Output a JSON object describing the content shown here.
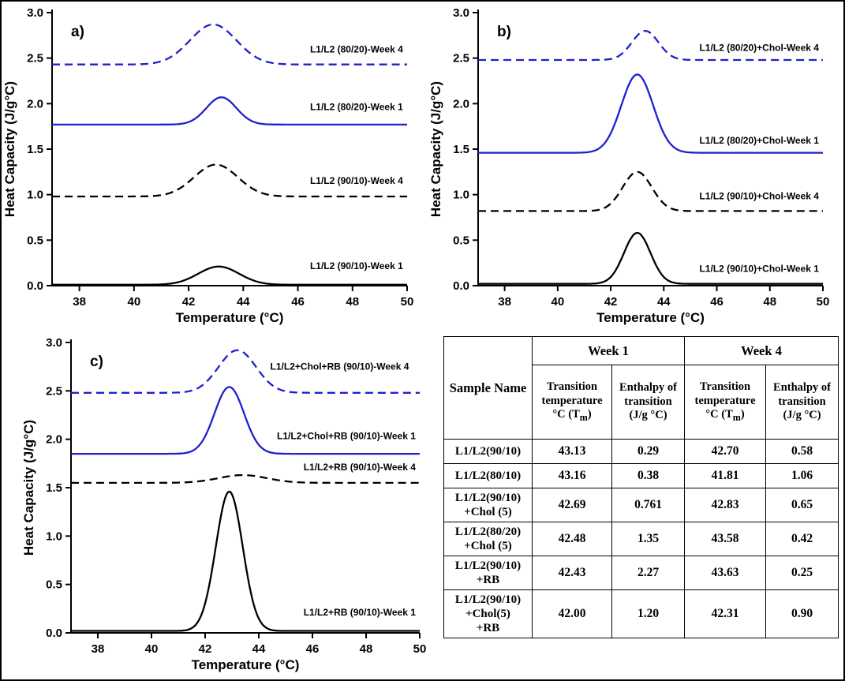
{
  "figure": {
    "background": "#ffffff",
    "border_color": "#000000",
    "accent_blue": "#2020CC",
    "line_black": "#000000"
  },
  "chart_data": [
    {
      "id": "a",
      "type": "line",
      "panel_label": "a)",
      "xlabel": "Temperature (°C)",
      "ylabel": "Heat Capacity (J/g°C)",
      "xlim": [
        37,
        50
      ],
      "ylim": [
        0,
        3
      ],
      "xticks": [
        38,
        40,
        42,
        44,
        46,
        48,
        50
      ],
      "yticks": [
        0,
        0.5,
        1,
        1.5,
        2,
        2.5,
        3
      ],
      "grid": false,
      "series": [
        {
          "name": "L1/L2 (80/20)-Week 4",
          "color": "#2020CC",
          "line_style": "dashed",
          "baseline": 2.43,
          "peak_center": 42.9,
          "peak_height": 0.44,
          "peak_sigma": 0.85,
          "label_x": 49.85,
          "label_y": 2.56
        },
        {
          "name": "L1/L2 (80/20)-Week 1",
          "color": "#2020CC",
          "line_style": "solid",
          "baseline": 1.77,
          "peak_center": 43.2,
          "peak_height": 0.3,
          "peak_sigma": 0.55,
          "label_x": 49.85,
          "label_y": 1.93
        },
        {
          "name": "L1/L2 (90/10)-Week 4",
          "color": "#000000",
          "line_style": "dashed",
          "baseline": 0.98,
          "peak_center": 43.0,
          "peak_height": 0.35,
          "peak_sigma": 0.8,
          "label_x": 49.85,
          "label_y": 1.12
        },
        {
          "name": "L1/L2 (90/10)-Week 1",
          "color": "#000000",
          "line_style": "solid",
          "baseline": 0.01,
          "peak_center": 43.1,
          "peak_height": 0.2,
          "peak_sigma": 0.75,
          "label_x": 49.85,
          "label_y": 0.18
        }
      ]
    },
    {
      "id": "b",
      "type": "line",
      "panel_label": "b)",
      "xlabel": "Temperature (°C)",
      "ylabel": "Heat Capacity (J/g°C)",
      "xlim": [
        37,
        50
      ],
      "ylim": [
        0,
        3
      ],
      "xticks": [
        38,
        40,
        42,
        44,
        46,
        48,
        50
      ],
      "yticks": [
        0,
        0.5,
        1,
        1.5,
        2,
        2.5,
        3
      ],
      "grid": false,
      "series": [
        {
          "name": "L1/L2 (80/20)+Chol-Week 4",
          "color": "#2020CC",
          "line_style": "dashed",
          "baseline": 2.48,
          "peak_center": 43.3,
          "peak_height": 0.32,
          "peak_sigma": 0.5,
          "label_x": 49.85,
          "label_y": 2.58
        },
        {
          "name": "L1/L2 (80/20)+Chol-Week 1",
          "color": "#2020CC",
          "line_style": "solid",
          "baseline": 1.46,
          "peak_center": 43.0,
          "peak_height": 0.86,
          "peak_sigma": 0.6,
          "label_x": 49.85,
          "label_y": 1.56
        },
        {
          "name": "L1/L2 (90/10)+Chol-Week 4",
          "color": "#000000",
          "line_style": "dashed",
          "baseline": 0.82,
          "peak_center": 43.0,
          "peak_height": 0.43,
          "peak_sigma": 0.55,
          "label_x": 49.85,
          "label_y": 0.95
        },
        {
          "name": "L1/L2 (90/10)+Chol-Week 1",
          "color": "#000000",
          "line_style": "solid",
          "baseline": 0.02,
          "peak_center": 43.0,
          "peak_height": 0.56,
          "peak_sigma": 0.5,
          "label_x": 49.85,
          "label_y": 0.15
        }
      ]
    },
    {
      "id": "c",
      "type": "line",
      "panel_label": "c)",
      "xlabel": "Temperature (°C)",
      "ylabel": "Heat Capacity (J/g°C)",
      "xlim": [
        37,
        50
      ],
      "ylim": [
        0,
        3
      ],
      "xticks": [
        38,
        40,
        42,
        44,
        46,
        48,
        50
      ],
      "yticks": [
        0,
        0.5,
        1,
        1.5,
        2,
        2.5,
        3
      ],
      "grid": false,
      "series": [
        {
          "name": "L1/L2+Chol+RB (90/10)-Week 4",
          "color": "#2020CC",
          "line_style": "dashed",
          "baseline": 2.48,
          "peak_center": 43.2,
          "peak_height": 0.44,
          "peak_sigma": 0.7,
          "label_x": 49.6,
          "label_y": 2.72
        },
        {
          "name": "L1/L2+Chol+RB (90/10)-Week 1",
          "color": "#2020CC",
          "line_style": "solid",
          "baseline": 1.85,
          "peak_center": 42.9,
          "peak_height": 0.69,
          "peak_sigma": 0.55,
          "label_x": 49.85,
          "label_y": 2.0
        },
        {
          "name": "L1/L2+RB (90/10)-Week 4",
          "color": "#000000",
          "line_style": "dashed",
          "baseline": 1.55,
          "peak_center": 43.4,
          "peak_height": 0.08,
          "peak_sigma": 0.9,
          "label_x": 49.85,
          "label_y": 1.68
        },
        {
          "name": "L1/L2+RB (90/10)-Week 1",
          "color": "#000000",
          "line_style": "solid",
          "baseline": 0.02,
          "peak_center": 42.9,
          "peak_height": 1.44,
          "peak_sigma": 0.5,
          "label_x": 49.85,
          "label_y": 0.18
        }
      ]
    }
  ],
  "table": {
    "headers": {
      "sample": "Sample Name",
      "week1": "Week 1",
      "week4": "Week 4",
      "temp_pre": "Transition temperature °C (T",
      "temp_sub": "m",
      "temp_post": ")",
      "enthalpy_week1": "Enthalpy of transition (J/g °C)",
      "enthalpy_week4": "Enthalpy of transition (J/g °C)"
    },
    "rows": [
      {
        "sample": "L1/L2(90/10)",
        "w1_temp": "43.13",
        "w1_enthalpy": "0.29",
        "w4_temp": "42.70",
        "w4_enthalpy": "0.58"
      },
      {
        "sample": "L1/L2(80/10)",
        "w1_temp": "43.16",
        "w1_enthalpy": "0.38",
        "w4_temp": "41.81",
        "w4_enthalpy": "1.06"
      },
      {
        "sample": "L1/L2(90/10)\n+Chol (5)",
        "w1_temp": "42.69",
        "w1_enthalpy": "0.761",
        "w4_temp": "42.83",
        "w4_enthalpy": "0.65"
      },
      {
        "sample": "L1/L2(80/20)\n+Chol (5)",
        "w1_temp": "42.48",
        "w1_enthalpy": "1.35",
        "w4_temp": "43.58",
        "w4_enthalpy": "0.42"
      },
      {
        "sample": "L1/L2(90/10)\n+RB",
        "w1_temp": "42.43",
        "w1_enthalpy": "2.27",
        "w4_temp": "43.63",
        "w4_enthalpy": "0.25"
      },
      {
        "sample": "L1/L2(90/10)\n+Chol(5)\n+RB",
        "w1_temp": "42.00",
        "w1_enthalpy": "1.20",
        "w4_temp": "42.31",
        "w4_enthalpy": "0.90"
      }
    ]
  }
}
